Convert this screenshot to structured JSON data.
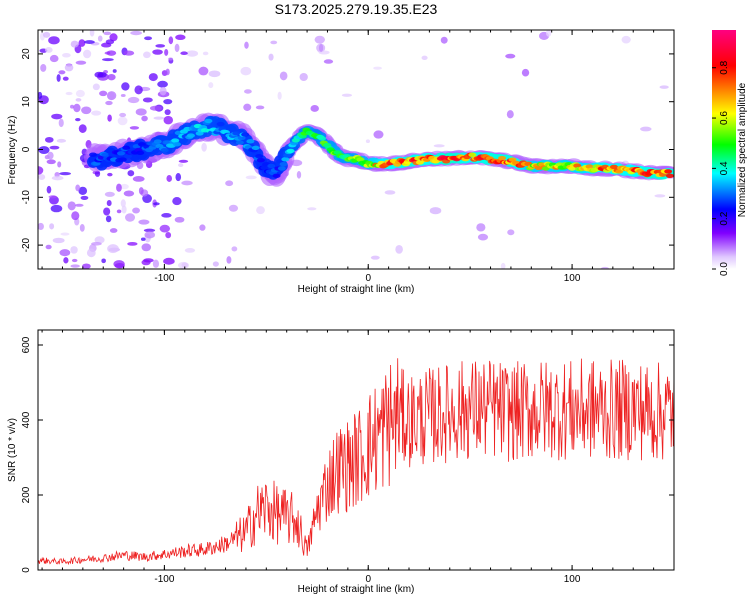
{
  "chart_data": [
    {
      "type": "heatmap",
      "title": "S173.2025.279.19.35.E23",
      "xlabel": "Height of straight line (km)",
      "ylabel": "Frequency (Hz)",
      "xlim": [
        -162,
        150
      ],
      "ylim": [
        -25,
        25
      ],
      "xticks": [
        -100,
        0,
        100
      ],
      "yticks": [
        -20,
        -10,
        0,
        10,
        20
      ],
      "grid": false,
      "colorbar": {
        "label": "Normalized spectral amplitude",
        "range": [
          0,
          0.95
        ],
        "ticks": [
          "0.0",
          "0.2",
          "0.4",
          "0.6",
          "0.8"
        ],
        "colors": [
          "#ffffff",
          "#e0c8ff",
          "#8000ff",
          "#0000ff",
          "#00ffff",
          "#00ff00",
          "#ffff00",
          "#ff8000",
          "#ff0000",
          "#ff0080"
        ]
      },
      "ridge": {
        "x": [
          -130,
          -120,
          -110,
          -100,
          -90,
          -80,
          -70,
          -60,
          -50,
          -45,
          -40,
          -35,
          -30,
          -25,
          -20,
          -15,
          -10,
          -5,
          0,
          10,
          20,
          30,
          40,
          50,
          60,
          70,
          80,
          90,
          100,
          110,
          120,
          130,
          140,
          148
        ],
        "y": [
          -2,
          -1,
          0,
          1,
          3,
          5,
          4,
          2,
          -4,
          -5,
          -1,
          2,
          4,
          3,
          1,
          -1,
          -2,
          -2,
          -3,
          -3,
          -2.5,
          -2,
          -2,
          -1.5,
          -2,
          -2.5,
          -3.5,
          -3.5,
          -3.5,
          -4,
          -4,
          -4.5,
          -5,
          -5
        ],
        "amp": [
          0.3,
          0.3,
          0.3,
          0.35,
          0.35,
          0.4,
          0.35,
          0.35,
          0.3,
          0.3,
          0.35,
          0.45,
          0.55,
          0.5,
          0.55,
          0.6,
          0.55,
          0.6,
          0.65,
          0.8,
          0.85,
          0.8,
          0.9,
          0.8,
          0.85,
          0.85,
          0.7,
          0.7,
          0.7,
          0.75,
          0.8,
          0.8,
          0.85,
          0.85
        ]
      }
    },
    {
      "type": "line",
      "xlabel": "Height of straight line (km)",
      "ylabel": "SNR (10 * v/v)",
      "xlim": [
        -162,
        150
      ],
      "ylim": [
        0,
        640
      ],
      "xticks": [
        -100,
        0,
        100
      ],
      "yticks": [
        0,
        200,
        400,
        600
      ],
      "grid": false,
      "color": "#ee2222",
      "series": [
        {
          "x": [
            -160,
            -150,
            -140,
            -130,
            -120,
            -110,
            -100,
            -90,
            -80,
            -70,
            -60,
            -55,
            -50,
            -45,
            -40,
            -35,
            -30,
            -25,
            -20,
            -15,
            -10,
            -5,
            0,
            5,
            10,
            15,
            20,
            30,
            40,
            50,
            60,
            70,
            80,
            90,
            100,
            110,
            120,
            130,
            140,
            150
          ],
          "values": [
            25,
            22,
            28,
            32,
            40,
            35,
            42,
            50,
            55,
            70,
            100,
            150,
            165,
            150,
            140,
            130,
            50,
            160,
            230,
            270,
            280,
            300,
            330,
            360,
            390,
            410,
            400,
            410,
            420,
            430,
            430,
            420,
            425,
            430,
            425,
            430,
            425,
            430,
            420,
            425
          ]
        }
      ]
    }
  ]
}
